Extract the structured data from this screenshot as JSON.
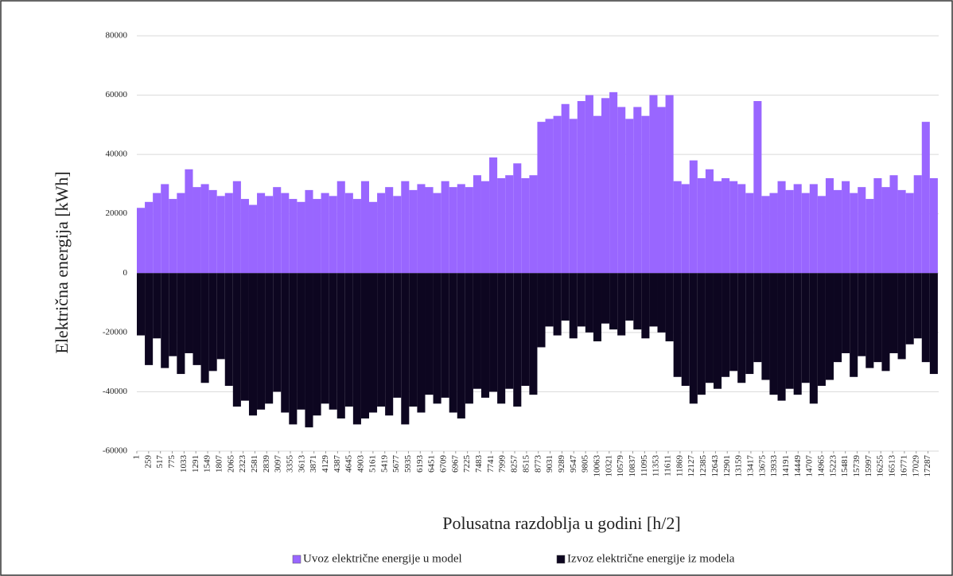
{
  "chart_data": {
    "type": "bar",
    "xlabel": "Polusatna razdoblja u godini [h/2]",
    "ylabel": "Električna energija [kWh]",
    "xlim": [
      1,
      17520
    ],
    "ylim": [
      -60000,
      80000
    ],
    "yticks": [
      -60000,
      -40000,
      -20000,
      0,
      20000,
      40000,
      60000,
      80000
    ],
    "xticks": [
      1,
      259,
      517,
      775,
      1033,
      1291,
      1549,
      1807,
      2065,
      2323,
      2581,
      2839,
      3097,
      3355,
      3613,
      3871,
      4129,
      4387,
      4645,
      4903,
      5161,
      5419,
      5677,
      5935,
      6193,
      6451,
      6709,
      6967,
      7225,
      7483,
      7741,
      7999,
      8257,
      8515,
      8773,
      9031,
      9289,
      9547,
      9805,
      10063,
      10321,
      10579,
      10837,
      11095,
      11353,
      11611,
      11869,
      12127,
      12385,
      12643,
      12901,
      13159,
      13417,
      13675,
      13933,
      14191,
      14449,
      14707,
      14965,
      15223,
      15481,
      15739,
      15997,
      16255,
      16513,
      16771,
      17029,
      17287
    ],
    "grid": true,
    "legend": "bottom",
    "x": [
      1,
      176,
      351,
      526,
      701,
      876,
      1051,
      1226,
      1401,
      1576,
      1751,
      1926,
      2101,
      2276,
      2451,
      2626,
      2801,
      2976,
      3151,
      3326,
      3501,
      3676,
      3851,
      4026,
      4201,
      4376,
      4551,
      4726,
      4901,
      5076,
      5251,
      5426,
      5601,
      5776,
      5951,
      6126,
      6301,
      6476,
      6651,
      6826,
      7001,
      7176,
      7351,
      7526,
      7701,
      7876,
      8051,
      8226,
      8401,
      8576,
      8751,
      8926,
      9101,
      9276,
      9451,
      9626,
      9801,
      9976,
      10151,
      10326,
      10501,
      10676,
      10851,
      11026,
      11201,
      11376,
      11551,
      11726,
      11901,
      12076,
      12251,
      12426,
      12601,
      12776,
      12951,
      13126,
      13301,
      13476,
      13651,
      13826,
      14001,
      14176,
      14351,
      14526,
      14701,
      14876,
      15051,
      15226,
      15401,
      15576,
      15751,
      15926,
      16101,
      16276,
      16451,
      16626,
      16801,
      16976,
      17151,
      17326
    ],
    "series": [
      {
        "name": "Uvoz električne energije u model",
        "color": "#9966ff",
        "values": [
          22000,
          24000,
          27000,
          30000,
          25000,
          27000,
          35000,
          29000,
          30000,
          28000,
          26000,
          27000,
          31000,
          25000,
          23000,
          27000,
          26000,
          29000,
          27000,
          25000,
          24000,
          28000,
          25000,
          27000,
          26000,
          31000,
          27000,
          25000,
          31000,
          24000,
          27000,
          29000,
          26000,
          31000,
          28000,
          30000,
          29000,
          27000,
          31000,
          29000,
          30000,
          29000,
          33000,
          31000,
          39000,
          32000,
          33000,
          37000,
          32000,
          33000,
          51000,
          52000,
          53000,
          57000,
          52000,
          58000,
          60000,
          53000,
          59000,
          61000,
          56000,
          52000,
          56000,
          53000,
          60000,
          56000,
          60000,
          31000,
          30000,
          38000,
          32000,
          35000,
          31000,
          32000,
          31000,
          30000,
          27000,
          58000,
          26000,
          27000,
          31000,
          28000,
          30000,
          27000,
          30000,
          26000,
          32000,
          28000,
          31000,
          27000,
          29000,
          25000,
          32000,
          29000,
          33000,
          28000,
          27000,
          33000,
          51000,
          32000
        ]
      },
      {
        "name": "Izvoz električne energije iz modela",
        "color": "#0d0620",
        "values": [
          -21000,
          -31000,
          -22000,
          -32000,
          -28000,
          -34000,
          -27000,
          -31000,
          -37000,
          -33000,
          -29000,
          -38000,
          -45000,
          -43000,
          -48000,
          -46000,
          -44000,
          -40000,
          -47000,
          -51000,
          -46000,
          -52000,
          -48000,
          -44000,
          -46000,
          -49000,
          -45000,
          -51000,
          -49000,
          -47000,
          -45000,
          -48000,
          -42000,
          -51000,
          -45000,
          -47000,
          -41000,
          -44000,
          -42000,
          -47000,
          -49000,
          -44000,
          -39000,
          -42000,
          -40000,
          -44000,
          -39000,
          -45000,
          -38000,
          -41000,
          -25000,
          -18000,
          -21000,
          -16000,
          -22000,
          -18000,
          -20000,
          -23000,
          -17000,
          -19000,
          -21000,
          -16000,
          -19000,
          -22000,
          -18000,
          -20000,
          -23000,
          -35000,
          -38000,
          -44000,
          -41000,
          -37000,
          -39000,
          -35000,
          -33000,
          -37000,
          -34000,
          -30000,
          -36000,
          -41000,
          -43000,
          -39000,
          -41000,
          -37000,
          -44000,
          -38000,
          -36000,
          -30000,
          -27000,
          -35000,
          -28000,
          -32000,
          -30000,
          -33000,
          -27000,
          -29000,
          -24000,
          -22000,
          -30000,
          -34000
        ]
      }
    ]
  }
}
